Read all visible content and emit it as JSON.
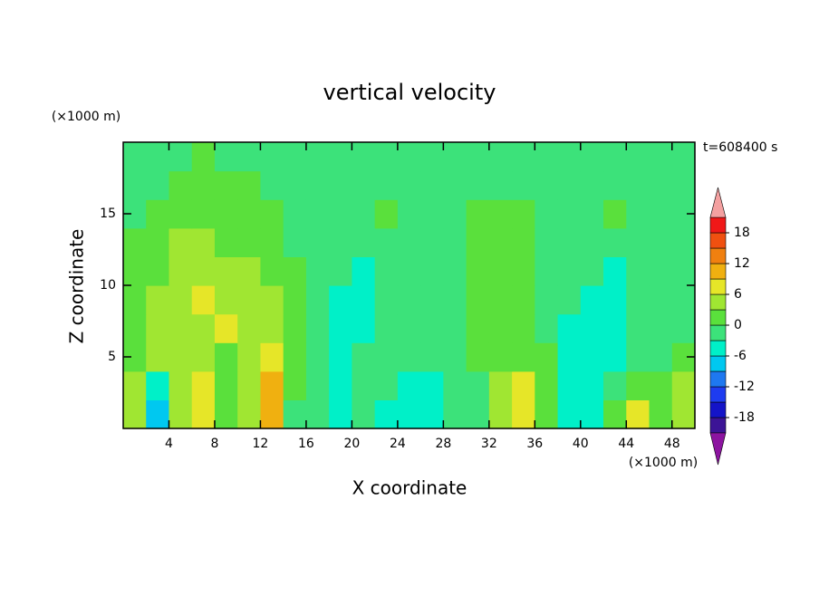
{
  "chart_data": {
    "type": "contour",
    "title": "vertical velocity",
    "x_label": "X coordinate",
    "y_label": "Z coordinate",
    "x_unit_label": "(×1000 m)",
    "y_unit_label": "(×1000 m)",
    "time_label": "t=608400 s",
    "xlim": [
      0,
      50
    ],
    "ylim": [
      0,
      20
    ],
    "xticks": [
      4,
      8,
      12,
      16,
      20,
      24,
      28,
      32,
      36,
      40,
      44,
      48
    ],
    "yticks": [
      5,
      10,
      15
    ],
    "x": [
      1,
      3,
      5,
      7,
      9,
      11,
      13,
      15,
      17,
      19,
      21,
      23,
      25,
      27,
      29,
      31,
      33,
      35,
      37,
      39,
      41,
      43,
      45,
      47,
      49
    ],
    "y": [
      1,
      3,
      5,
      7,
      9,
      11,
      13,
      15,
      17,
      19
    ],
    "z": [
      [
        4,
        -8,
        4,
        7,
        1,
        4,
        9,
        -1,
        -1,
        -4,
        -2,
        -4,
        -5,
        -4,
        -1,
        -1,
        4,
        7,
        2,
        -4,
        -5,
        2,
        7,
        2,
        5
      ],
      [
        4,
        -4,
        4,
        6,
        1,
        5,
        10,
        1,
        -1,
        -4,
        -1,
        -2,
        -4,
        -4,
        -2,
        -1,
        4,
        6,
        1,
        -4,
        -4,
        -1,
        2,
        1,
        4
      ],
      [
        1,
        4,
        5,
        5,
        1,
        5,
        6,
        2,
        -1,
        -4,
        -2,
        -1,
        -1,
        -2,
        -1,
        1,
        2,
        2,
        1,
        -4,
        -4,
        -4,
        -2,
        -1,
        1
      ],
      [
        1,
        4,
        5,
        5,
        6,
        4,
        4,
        2,
        -1,
        -5,
        -4,
        -1,
        -1,
        -1,
        -1,
        1,
        1,
        1,
        -1,
        -4,
        -4,
        -4,
        -2,
        -1,
        -1
      ],
      [
        1,
        4,
        5,
        7,
        5,
        4,
        4,
        1,
        -1,
        -4,
        -4,
        -1,
        -1,
        -1,
        -1,
        1,
        1,
        1,
        -1,
        -1,
        -4,
        -4,
        -2,
        -1,
        -1
      ],
      [
        1,
        1,
        4,
        5,
        5,
        4,
        1,
        1,
        -1,
        -2,
        -4,
        -1,
        -1,
        -1,
        -1,
        1,
        1,
        1,
        -1,
        -1,
        -2,
        -4,
        -1,
        -1,
        -1
      ],
      [
        1,
        1,
        4,
        4,
        1,
        1,
        1,
        -1,
        -1,
        -1,
        -1,
        -1,
        -1,
        -1,
        -1,
        1,
        1,
        1,
        -1,
        -1,
        -1,
        -1,
        -1,
        -1,
        -1
      ],
      [
        -1,
        1,
        1,
        1,
        1,
        1,
        1,
        -1,
        -1,
        -1,
        -1,
        1,
        -1,
        -1,
        -1,
        1,
        1,
        1,
        -1,
        -1,
        -1,
        1,
        -1,
        -1,
        -1
      ],
      [
        -1,
        -1,
        1,
        1,
        1,
        1,
        -1,
        -1,
        -1,
        -1,
        -1,
        -1,
        -1,
        -1,
        -1,
        -1,
        -1,
        -1,
        -1,
        -1,
        -1,
        -1,
        -1,
        -1,
        -1
      ],
      [
        -1,
        -1,
        -1,
        1,
        -1,
        -1,
        -1,
        -1,
        -1,
        -1,
        -1,
        -1,
        -1,
        -1,
        -1,
        -1,
        -1,
        -1,
        -1,
        -1,
        -1,
        -1,
        -1,
        -1,
        -1
      ]
    ],
    "levels": [
      -21,
      -18,
      -15,
      -12,
      -9,
      -6,
      -3,
      0,
      3,
      6,
      9,
      12,
      15,
      18,
      21
    ],
    "colors": [
      "#8c14a0",
      "#3c1496",
      "#1414c8",
      "#1e3cf0",
      "#1e78f0",
      "#00c8f0",
      "#00f0c8",
      "#3ce27a",
      "#5ae03c",
      "#a0e632",
      "#e6e628",
      "#f0b010",
      "#f08010",
      "#f05010",
      "#f01818",
      "#f4a0a0"
    ],
    "colorbar_ticks": [
      18,
      12,
      6,
      0,
      -6,
      -12,
      -18
    ]
  }
}
